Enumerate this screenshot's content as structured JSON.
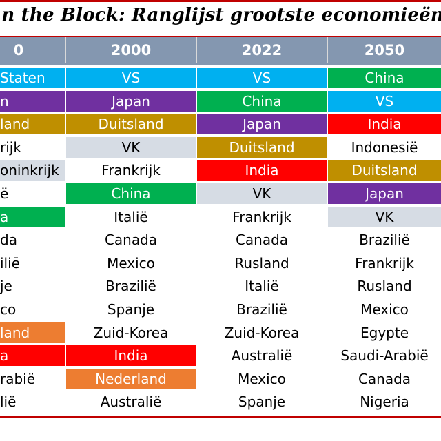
{
  "title": "n the Block: Ranglijst grootste economieën",
  "columns": [
    "0",
    "2000",
    "2022",
    "2050"
  ],
  "colors": {
    "blue": "#00b0f0",
    "purple": "#7030a0",
    "gold": "#bf8f00",
    "grey": "#d6dce4",
    "green": "#00b050",
    "red": "#ff0000",
    "orange": "#ed7d31",
    "header": "#8497b0",
    "border": "#c00000"
  },
  "col0": [
    {
      "text": " Staten",
      "color": "blue"
    },
    {
      "text": "n",
      "color": "purple"
    },
    {
      "text": "land",
      "color": "gold"
    },
    {
      "text": "rijk",
      "color": "white"
    },
    {
      "text": "oninkrijk",
      "color": "grey"
    },
    {
      "text": "ë",
      "color": "white"
    },
    {
      "text": "a",
      "color": "green"
    },
    {
      "text": "da",
      "color": "white"
    },
    {
      "text": "iliē",
      "color": "white"
    },
    {
      "text": "je",
      "color": "white"
    },
    {
      "text": "co",
      "color": "white"
    },
    {
      "text": "land",
      "color": "orange"
    },
    {
      "text": "a",
      "color": "red"
    },
    {
      "text": "rabië",
      "color": "white"
    },
    {
      "text": "lië",
      "color": "white"
    }
  ],
  "col2000": [
    {
      "text": "VS",
      "color": "blue"
    },
    {
      "text": "Japan",
      "color": "purple"
    },
    {
      "text": "Duitsland",
      "color": "gold"
    },
    {
      "text": "VK",
      "color": "grey"
    },
    {
      "text": "Frankrijk",
      "color": "white"
    },
    {
      "text": "China",
      "color": "green"
    },
    {
      "text": "Italië",
      "color": "white"
    },
    {
      "text": "Canada",
      "color": "white"
    },
    {
      "text": "Mexico",
      "color": "white"
    },
    {
      "text": "Brazilië",
      "color": "white"
    },
    {
      "text": "Spanje",
      "color": "white"
    },
    {
      "text": "Zuid-Korea",
      "color": "white"
    },
    {
      "text": "India",
      "color": "red"
    },
    {
      "text": "Nederland",
      "color": "orange"
    },
    {
      "text": "Australië",
      "color": "white"
    }
  ],
  "col2022": [
    {
      "text": "VS",
      "color": "blue"
    },
    {
      "text": "China",
      "color": "green"
    },
    {
      "text": "Japan",
      "color": "purple"
    },
    {
      "text": "Duitsland",
      "color": "gold"
    },
    {
      "text": "India",
      "color": "red"
    },
    {
      "text": "VK",
      "color": "grey"
    },
    {
      "text": "Frankrijk",
      "color": "white"
    },
    {
      "text": "Canada",
      "color": "white"
    },
    {
      "text": "Rusland",
      "color": "white"
    },
    {
      "text": "Italië",
      "color": "white"
    },
    {
      "text": "Brazilië",
      "color": "white"
    },
    {
      "text": "Zuid-Korea",
      "color": "white"
    },
    {
      "text": "Australië",
      "color": "white"
    },
    {
      "text": "Mexico",
      "color": "white"
    },
    {
      "text": "Spanje",
      "color": "white"
    }
  ],
  "col2050": [
    {
      "text": "China",
      "color": "green"
    },
    {
      "text": "VS",
      "color": "blue"
    },
    {
      "text": "India",
      "color": "red"
    },
    {
      "text": "Indonesië",
      "color": "white"
    },
    {
      "text": "Duitsland",
      "color": "gold"
    },
    {
      "text": "Japan",
      "color": "purple"
    },
    {
      "text": "VK",
      "color": "grey"
    },
    {
      "text": "Brazilië",
      "color": "white"
    },
    {
      "text": "Frankrijk",
      "color": "white"
    },
    {
      "text": "Rusland",
      "color": "white"
    },
    {
      "text": "Mexico",
      "color": "white"
    },
    {
      "text": "Egypte",
      "color": "white"
    },
    {
      "text": "Saudi-Arabië",
      "color": "white"
    },
    {
      "text": "Canada",
      "color": "white"
    },
    {
      "text": "Nigeria",
      "color": "white"
    }
  ]
}
